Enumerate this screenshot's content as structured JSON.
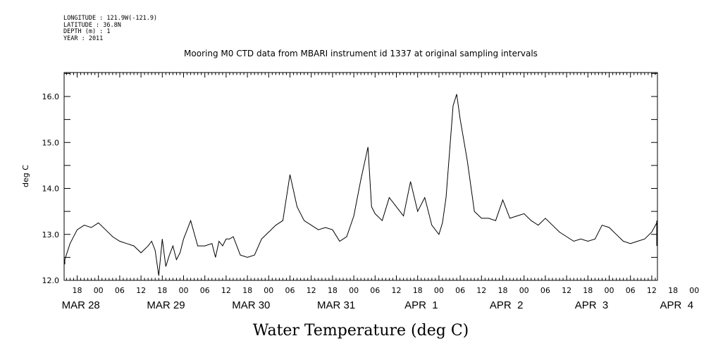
{
  "meta_lines": [
    "LONGITUDE : 121.9W(-121.9)",
    "LATITUDE : 36.8N",
    "DEPTH (m) : 1",
    "YEAR : 2011"
  ],
  "chart_data": {
    "type": "line",
    "title": "Mooring M0 CTD data from MBARI instrument id 1337 at original sampling intervals",
    "xlabel": "Water Temperature (deg C)",
    "ylabel": "deg C",
    "ylim": [
      12.0,
      16.5
    ],
    "yticks": [
      "12.0",
      "13.0",
      "14.0",
      "15.0",
      "16.0"
    ],
    "hour_tick_labels": [
      "18",
      "00",
      "06",
      "12",
      "18",
      "00",
      "06",
      "12",
      "18",
      "00",
      "06",
      "12",
      "18",
      "00",
      "06",
      "12",
      "18",
      "00",
      "06",
      "12",
      "18",
      "00",
      "06",
      "12",
      "18",
      "00",
      "06",
      "12",
      "18",
      "00",
      "06",
      "12"
    ],
    "day_labels": [
      "MAR 28",
      "MAR 29",
      "MAR 30",
      "MAR 31",
      "APR  1",
      "APR  2",
      "APR  3",
      "APR  4"
    ],
    "series": [
      {
        "x": [
          "03-27 12:00",
          "03-27 14:00",
          "03-27 16:00",
          "03-27 18:00",
          "03-27 20:00",
          "03-27 22:00",
          "03-28 00:00",
          "03-28 02:00",
          "03-28 04:00",
          "03-28 06:00",
          "03-28 08:00",
          "03-28 10:00",
          "03-28 12:00",
          "03-28 14:00",
          "03-28 15:00",
          "03-28 16:00",
          "03-28 17:00",
          "03-28 18:00",
          "03-28 19:00",
          "03-28 20:00",
          "03-28 21:00",
          "03-28 22:00",
          "03-28 23:00",
          "03-29 00:00",
          "03-29 02:00",
          "03-29 04:00",
          "03-29 06:00",
          "03-29 08:00",
          "03-29 09:00",
          "03-29 10:00",
          "03-29 11:00",
          "03-29 12:00",
          "03-29 13:00",
          "03-29 14:00",
          "03-29 16:00",
          "03-29 18:00",
          "03-29 20:00",
          "03-29 22:00",
          "03-30 00:00",
          "03-30 02:00",
          "03-30 04:00",
          "03-30 06:00",
          "03-30 08:00",
          "03-30 10:00",
          "03-30 12:00",
          "03-30 14:00",
          "03-30 16:00",
          "03-30 18:00",
          "03-30 20:00",
          "03-30 22:00",
          "03-31 00:00",
          "03-31 02:00",
          "03-31 04:00",
          "03-31 05:00",
          "03-31 06:00",
          "03-31 08:00",
          "03-31 10:00",
          "03-31 12:00",
          "03-31 14:00",
          "03-31 16:00",
          "03-31 18:00",
          "03-31 20:00",
          "03-31 22:00",
          "04-01 00:00",
          "04-01 01:00",
          "04-01 02:00",
          "04-01 03:00",
          "04-01 04:00",
          "04-01 05:00",
          "04-01 06:00",
          "04-01 08:00",
          "04-01 10:00",
          "04-01 12:00",
          "04-01 14:00",
          "04-01 16:00",
          "04-01 18:00",
          "04-01 20:00",
          "04-01 22:00",
          "04-02 00:00",
          "04-02 02:00",
          "04-02 04:00",
          "04-02 06:00",
          "04-02 08:00",
          "04-02 10:00",
          "04-02 12:00",
          "04-02 14:00",
          "04-02 16:00",
          "04-02 18:00",
          "04-02 20:00",
          "04-02 22:00",
          "04-03 00:00",
          "04-03 02:00",
          "04-03 04:00",
          "04-03 06:00",
          "04-03 08:00",
          "04-03 10:00",
          "04-03 12:00",
          "04-03 14:00",
          "04-03 16:00",
          "04-03 18:00",
          "04-03 20:00",
          "04-03 22:00",
          "04-04 00:00",
          "04-04 02:00",
          "04-04 04:00",
          "04-04 06:00",
          "04-04 08:00",
          "04-04 10:00",
          "04-04 12:00",
          "04-04 14:00"
        ],
        "y": [
          12.35,
          12.45,
          12.8,
          13.1,
          13.2,
          13.15,
          13.25,
          13.1,
          12.95,
          12.85,
          12.8,
          12.75,
          12.6,
          12.75,
          12.85,
          12.65,
          12.1,
          12.9,
          12.3,
          12.55,
          12.75,
          12.45,
          12.6,
          12.9,
          13.3,
          12.75,
          12.75,
          12.8,
          12.5,
          12.85,
          12.75,
          12.9,
          12.9,
          12.95,
          12.55,
          12.5,
          12.55,
          12.9,
          13.05,
          13.2,
          13.3,
          14.3,
          13.6,
          13.3,
          13.2,
          13.1,
          13.15,
          13.1,
          12.85,
          12.95,
          13.4,
          14.2,
          14.9,
          13.6,
          13.45,
          13.3,
          13.8,
          13.6,
          13.4,
          14.15,
          13.5,
          13.8,
          13.2,
          13.0,
          13.25,
          13.8,
          14.8,
          15.8,
          16.05,
          15.5,
          14.6,
          13.5,
          13.35,
          13.35,
          13.3,
          13.75,
          13.35,
          13.4,
          13.45,
          13.3,
          13.2,
          13.35,
          13.2,
          13.05,
          12.95,
          12.85,
          12.9,
          12.85,
          12.9,
          13.2,
          13.15,
          13.0,
          12.85,
          12.8,
          12.85,
          12.9,
          13.05,
          13.25,
          13.3,
          13.05,
          12.95,
          12.9,
          12.95,
          13.05,
          13.2,
          13.1,
          13.15,
          13.05,
          12.9,
          12.75
        ]
      }
    ]
  }
}
